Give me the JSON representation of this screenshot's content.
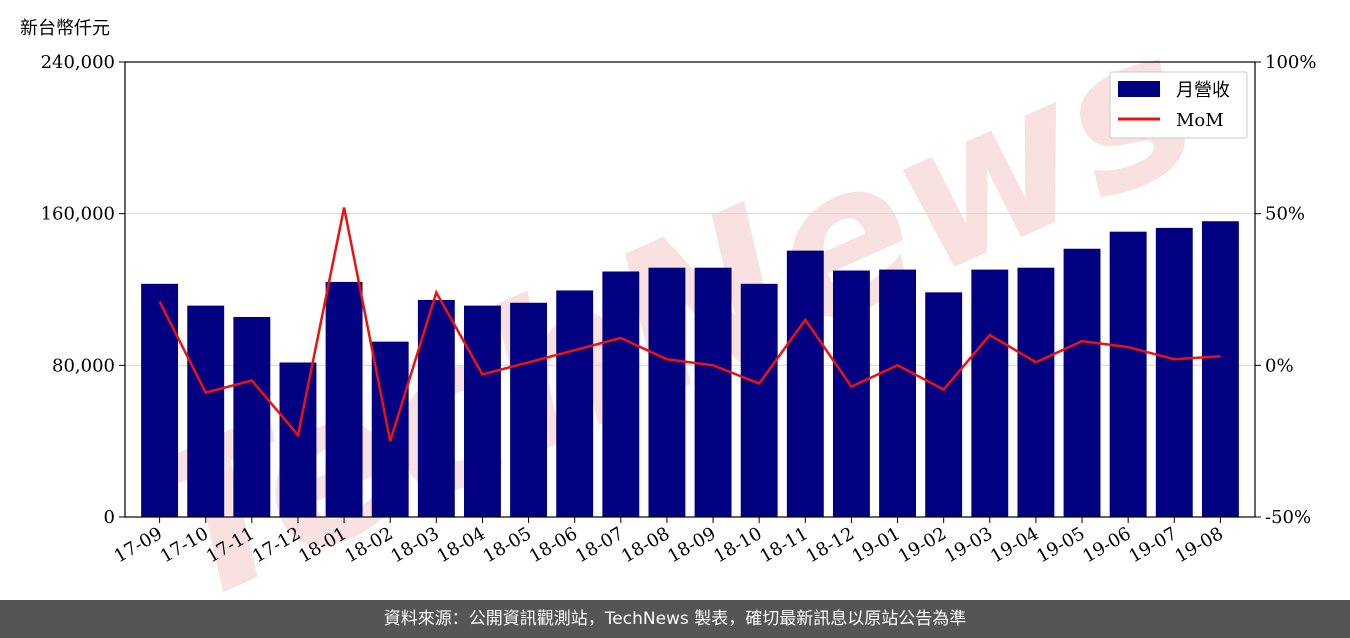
{
  "y_unit_label": "新台幣仟元",
  "footer_note": "資料來源：公開資訊觀測站，TechNews 製表，確切最新訊息以原站公告為準",
  "watermark": "TechNews",
  "colors": {
    "bar": "#000080",
    "line": "#ee1111",
    "grid": "#d9d9d9",
    "footer_bg": "#555555"
  },
  "chart_data": {
    "type": "bar",
    "categories": [
      "17-09",
      "17-10",
      "17-11",
      "17-12",
      "18-01",
      "18-02",
      "18-03",
      "18-04",
      "18-05",
      "18-06",
      "18-07",
      "18-08",
      "18-09",
      "18-10",
      "18-11",
      "18-12",
      "19-01",
      "19-02",
      "19-03",
      "19-04",
      "19-05",
      "19-06",
      "19-07",
      "19-08"
    ],
    "series": [
      {
        "name": "月營收",
        "type": "bar",
        "axis": "left",
        "values": [
          123000,
          111500,
          105500,
          81500,
          124000,
          92500,
          114500,
          111500,
          113000,
          119500,
          129500,
          131500,
          131500,
          123000,
          140500,
          130000,
          130500,
          118500,
          130500,
          131500,
          141500,
          150500,
          152500,
          156000
        ]
      },
      {
        "name": "MoM",
        "type": "line",
        "axis": "right",
        "values": [
          21,
          -9,
          -5,
          -23,
          52,
          -25,
          24,
          -3,
          1,
          5,
          9,
          2,
          0,
          -6,
          15,
          -7,
          0,
          -8,
          10,
          1,
          8,
          6,
          2,
          3
        ]
      }
    ],
    "y_left": {
      "lim": [
        0,
        240000
      ],
      "ticks": [
        "0",
        "80,000",
        "160,000",
        "240,000"
      ]
    },
    "y_right": {
      "lim": [
        -50,
        100
      ],
      "ticks": [
        "-50%",
        "0%",
        "50%",
        "100%"
      ]
    },
    "grid": true,
    "legend": "top-right"
  }
}
